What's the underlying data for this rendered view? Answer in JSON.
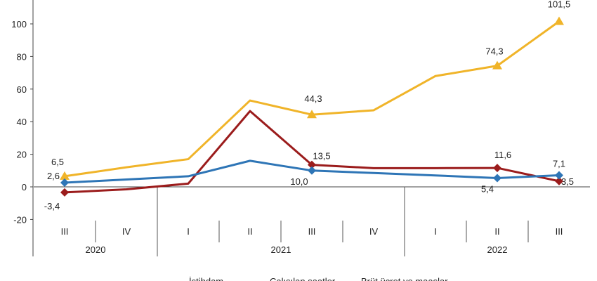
{
  "chart_data": {
    "type": "line",
    "title": "",
    "xlabel": "",
    "ylabel": "",
    "ylim": [
      -20,
      115
    ],
    "yticks": [
      -20,
      0,
      20,
      40,
      60,
      80,
      100
    ],
    "grid": false,
    "legend_placement": "bottom",
    "categories": [
      "III",
      "IV",
      "I",
      "II",
      "III",
      "IV",
      "I",
      "II",
      "III"
    ],
    "years": [
      {
        "label": "2020",
        "span": [
          0,
          1
        ]
      },
      {
        "label": "2021",
        "span": [
          2,
          5
        ]
      },
      {
        "label": "2022",
        "span": [
          6,
          8
        ]
      }
    ],
    "series": [
      {
        "name": "İstihdam",
        "color": "#2e75b6",
        "marker": "diamond",
        "values": [
          2.6,
          4.5,
          6.5,
          16,
          10.0,
          8.5,
          7,
          5.4,
          7.1
        ],
        "labels": [
          "2,6",
          null,
          null,
          null,
          "10,0",
          null,
          null,
          "5,4",
          "7,1"
        ]
      },
      {
        "name": "Çalışılan saatler",
        "color": "#9b1c1c",
        "marker": "diamond",
        "values": [
          -3.4,
          -1.5,
          2,
          46.5,
          13.5,
          11.5,
          11.5,
          11.6,
          3.5
        ],
        "labels": [
          "-3,4",
          null,
          null,
          null,
          "13,5",
          null,
          null,
          "11,6",
          "3,5"
        ]
      },
      {
        "name": "Brüt ücret ve maaşlar",
        "color": "#f0b429",
        "marker": "triangle",
        "values": [
          6.5,
          12,
          17,
          53,
          44.3,
          47,
          68,
          74.3,
          101.5
        ],
        "labels": [
          "6,5",
          null,
          null,
          null,
          "44,3",
          null,
          null,
          "74,3",
          "101,5"
        ]
      }
    ]
  }
}
